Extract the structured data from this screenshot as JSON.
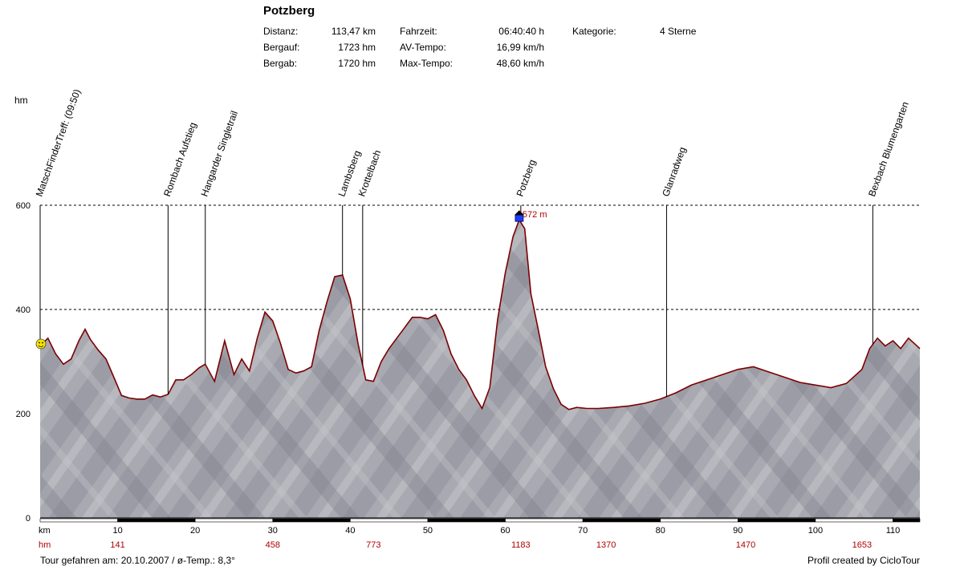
{
  "header": {
    "title": "Potzberg",
    "stats": [
      {
        "label": "Distanz:",
        "value": "113,47 km"
      },
      {
        "label": "Bergauf:",
        "value": "1723 hm"
      },
      {
        "label": "Bergab:",
        "value": "1720 hm"
      },
      {
        "label": "Fahrzeit:",
        "value": "06:40:40 h"
      },
      {
        "label": "AV-Tempo:",
        "value": "16,99 km/h"
      },
      {
        "label": "Max-Tempo:",
        "value": "48,60 km/h"
      },
      {
        "label": "Kategorie:",
        "value": "4 Sterne"
      }
    ]
  },
  "footer": {
    "left": "Tour gefahren am: 20.10.2007  /  ø-Temp.: 8,3°",
    "right": "Profil created by CicloTour"
  },
  "colors": {
    "profile_line": "#7a0000",
    "terrain_light": "#a9a9b1",
    "terrain_dark": "#6e6e7c",
    "climb_marks": "#b00000",
    "waypoint_line": "#000000"
  },
  "chart_data": {
    "type": "area",
    "title": "Potzberg",
    "xlabel": "km",
    "ylabel": "hm",
    "xlim": [
      0,
      113.47
    ],
    "ylim": [
      0,
      600
    ],
    "x_ticks": [
      10,
      20,
      30,
      40,
      50,
      60,
      70,
      80,
      90,
      100,
      110
    ],
    "y_ticks": [
      0,
      200,
      400,
      600
    ],
    "grid_y": [
      200,
      400,
      600
    ],
    "cum_climb_label": "hm",
    "cum_climb": [
      {
        "km": 10,
        "hm": "141"
      },
      {
        "km": 20,
        "hm": ""
      },
      {
        "km": 30,
        "hm": "458"
      },
      {
        "km": 40,
        "hm": ""
      },
      {
        "km": 43,
        "hm": "773"
      },
      {
        "km": 62,
        "hm": "1183"
      },
      {
        "km": 73,
        "hm": "1370"
      },
      {
        "km": 91,
        "hm": "1470"
      },
      {
        "km": 106,
        "hm": "1653"
      }
    ],
    "max_label": "572 m",
    "max_point": {
      "km": 61.8,
      "hm": 572
    },
    "waypoints": [
      {
        "name": "MatschFinderTreff: (09:50)",
        "km": 0
      },
      {
        "name": "Rombach Aufstieg",
        "km": 16.5
      },
      {
        "name": "Hangarder Singletrail",
        "km": 21.3
      },
      {
        "name": "Lambsberg",
        "km": 39.0
      },
      {
        "name": "Krottelbach",
        "km": 41.6
      },
      {
        "name": "Potzberg",
        "km": 62.0
      },
      {
        "name": "Glanradweg",
        "km": 80.8
      },
      {
        "name": "Bexbach Blumengarten",
        "km": 107.4
      }
    ],
    "series": [
      {
        "x": [
          0,
          1,
          2,
          3,
          4,
          5,
          5.8,
          6.5,
          7.5,
          8.5,
          9.5,
          10.5,
          11.5,
          12.5,
          13.5,
          14.5,
          15.5,
          16.5,
          17.5,
          18.5,
          19.5,
          20.5,
          21.3,
          22.5,
          23.8,
          25,
          26,
          27,
          28,
          29,
          30,
          31,
          32,
          33,
          34,
          35,
          36,
          37,
          38,
          39,
          40,
          41,
          42,
          43,
          44,
          45,
          46,
          47,
          48,
          49,
          50,
          51,
          52,
          53,
          54,
          55,
          56,
          57,
          58,
          59,
          60,
          61,
          61.8,
          62.5,
          63.3,
          64.2,
          65.2,
          66.2,
          67.2,
          68.2,
          69.2,
          70.5,
          72,
          74,
          76,
          78,
          80,
          82,
          84,
          86,
          88,
          90,
          92,
          94,
          96,
          98,
          100,
          102,
          104,
          106,
          107,
          108,
          109,
          110,
          111,
          112,
          113.47
        ],
        "values": [
          330,
          345,
          315,
          295,
          305,
          340,
          362,
          342,
          322,
          305,
          270,
          235,
          230,
          228,
          228,
          236,
          232,
          237,
          265,
          265,
          275,
          288,
          295,
          262,
          340,
          275,
          305,
          282,
          345,
          395,
          378,
          335,
          285,
          278,
          282,
          290,
          360,
          415,
          463,
          466,
          420,
          335,
          265,
          262,
          300,
          325,
          345,
          365,
          385,
          385,
          382,
          390,
          360,
          315,
          285,
          265,
          235,
          210,
          250,
          380,
          470,
          540,
          572,
          555,
          430,
          365,
          290,
          248,
          218,
          208,
          212,
          210,
          210,
          212,
          215,
          220,
          228,
          240,
          255,
          265,
          275,
          285,
          290,
          280,
          270,
          260,
          255,
          250,
          258,
          285,
          325,
          345,
          330,
          340,
          325,
          345,
          325
        ]
      }
    ]
  }
}
